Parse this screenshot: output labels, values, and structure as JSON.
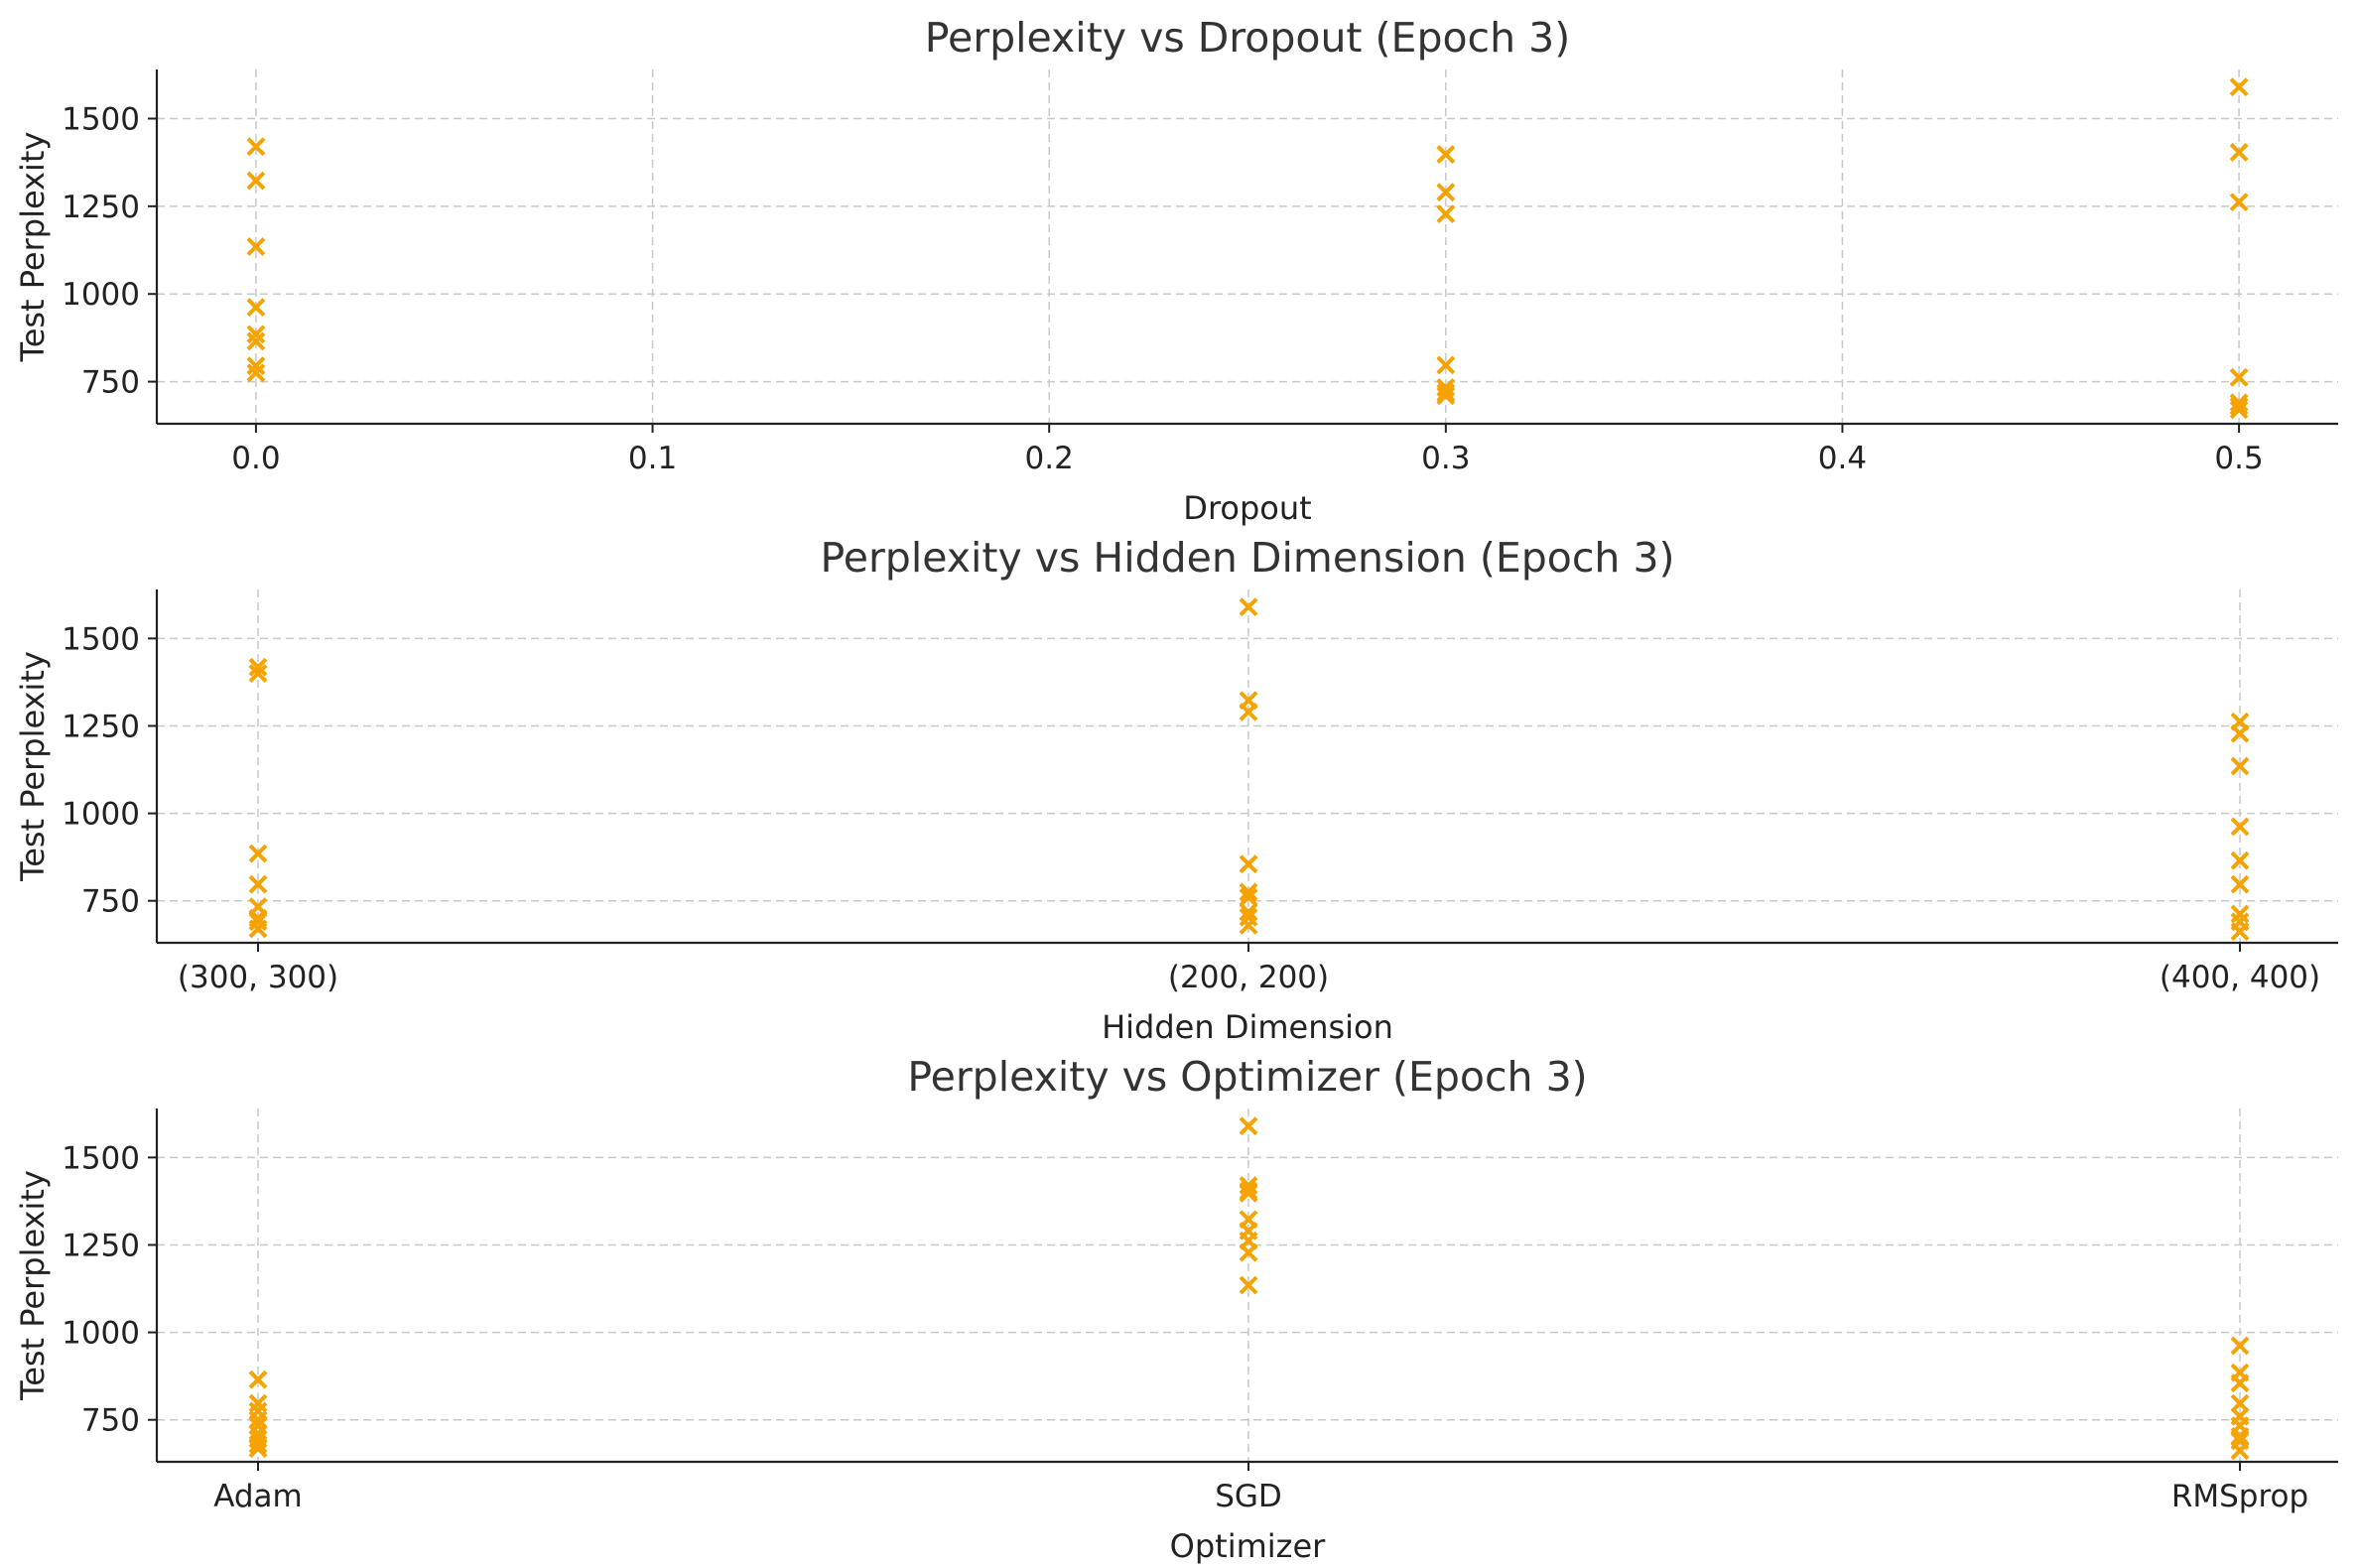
{
  "marker_color": "#f5a300",
  "marker_symbol": "x-marker",
  "chart_data": [
    {
      "type": "scatter",
      "title": "Perplexity vs Dropout (Epoch 3)",
      "xlabel": "Dropout",
      "ylabel": "Test Perplexity",
      "x_axis": "numeric",
      "xlim": [
        -0.025,
        0.525
      ],
      "ylim": [
        630,
        1640
      ],
      "xticks": [
        0.0,
        0.1,
        0.2,
        0.3,
        0.4,
        0.5
      ],
      "xtick_labels": [
        "0.0",
        "0.1",
        "0.2",
        "0.3",
        "0.4",
        "0.5"
      ],
      "yticks": [
        750,
        1000,
        1250,
        1500
      ],
      "ytick_labels": [
        "750",
        "1000",
        "1250",
        "1500"
      ],
      "grid": true,
      "points": [
        {
          "x": 0.0,
          "y": 1420
        },
        {
          "x": 0.0,
          "y": 1323
        },
        {
          "x": 0.0,
          "y": 1135
        },
        {
          "x": 0.0,
          "y": 962
        },
        {
          "x": 0.0,
          "y": 885
        },
        {
          "x": 0.0,
          "y": 865
        },
        {
          "x": 0.0,
          "y": 795
        },
        {
          "x": 0.0,
          "y": 775
        },
        {
          "x": 0.3,
          "y": 1398
        },
        {
          "x": 0.3,
          "y": 1290
        },
        {
          "x": 0.3,
          "y": 1228
        },
        {
          "x": 0.3,
          "y": 797
        },
        {
          "x": 0.3,
          "y": 733
        },
        {
          "x": 0.3,
          "y": 718
        },
        {
          "x": 0.3,
          "y": 710
        },
        {
          "x": 0.5,
          "y": 1590
        },
        {
          "x": 0.5,
          "y": 1404
        },
        {
          "x": 0.5,
          "y": 1262
        },
        {
          "x": 0.5,
          "y": 762
        },
        {
          "x": 0.5,
          "y": 690
        },
        {
          "x": 0.5,
          "y": 680
        },
        {
          "x": 0.5,
          "y": 670
        }
      ]
    },
    {
      "type": "scatter",
      "title": "Perplexity vs Hidden Dimension (Epoch 3)",
      "xlabel": "Hidden Dimension",
      "ylabel": "Test Perplexity",
      "x_axis": "categorical",
      "categories": [
        "(300, 300)",
        "(200, 200)",
        "(400, 400)"
      ],
      "ylim": [
        630,
        1640
      ],
      "yticks": [
        750,
        1000,
        1250,
        1500
      ],
      "ytick_labels": [
        "750",
        "1000",
        "1250",
        "1500"
      ],
      "grid": true,
      "points": [
        {
          "x": "(300, 300)",
          "y": 1418
        },
        {
          "x": "(300, 300)",
          "y": 1400
        },
        {
          "x": "(300, 300)",
          "y": 885
        },
        {
          "x": "(300, 300)",
          "y": 797
        },
        {
          "x": "(300, 300)",
          "y": 733
        },
        {
          "x": "(300, 300)",
          "y": 700
        },
        {
          "x": "(300, 300)",
          "y": 690
        },
        {
          "x": "(300, 300)",
          "y": 670
        },
        {
          "x": "(200, 200)",
          "y": 1590
        },
        {
          "x": "(200, 200)",
          "y": 1323
        },
        {
          "x": "(200, 200)",
          "y": 1290
        },
        {
          "x": "(200, 200)",
          "y": 855
        },
        {
          "x": "(200, 200)",
          "y": 775
        },
        {
          "x": "(200, 200)",
          "y": 760
        },
        {
          "x": "(200, 200)",
          "y": 718
        },
        {
          "x": "(200, 200)",
          "y": 703
        },
        {
          "x": "(200, 200)",
          "y": 680
        },
        {
          "x": "(400, 400)",
          "y": 1262
        },
        {
          "x": "(400, 400)",
          "y": 1228
        },
        {
          "x": "(400, 400)",
          "y": 1135
        },
        {
          "x": "(400, 400)",
          "y": 962
        },
        {
          "x": "(400, 400)",
          "y": 865
        },
        {
          "x": "(400, 400)",
          "y": 797
        },
        {
          "x": "(400, 400)",
          "y": 712
        },
        {
          "x": "(400, 400)",
          "y": 690
        },
        {
          "x": "(400, 400)",
          "y": 662
        }
      ]
    },
    {
      "type": "scatter",
      "title": "Perplexity vs Optimizer (Epoch 3)",
      "xlabel": "Optimizer",
      "ylabel": "Test Perplexity",
      "x_axis": "categorical",
      "categories": [
        "Adam",
        "SGD",
        "RMSprop"
      ],
      "ylim": [
        630,
        1640
      ],
      "yticks": [
        750,
        1000,
        1250,
        1500
      ],
      "ytick_labels": [
        "750",
        "1000",
        "1250",
        "1500"
      ],
      "grid": true,
      "points": [
        {
          "x": "Adam",
          "y": 865
        },
        {
          "x": "Adam",
          "y": 797
        },
        {
          "x": "Adam",
          "y": 775
        },
        {
          "x": "Adam",
          "y": 750
        },
        {
          "x": "Adam",
          "y": 733
        },
        {
          "x": "Adam",
          "y": 710
        },
        {
          "x": "Adam",
          "y": 695
        },
        {
          "x": "Adam",
          "y": 680
        },
        {
          "x": "Adam",
          "y": 668
        },
        {
          "x": "SGD",
          "y": 1590
        },
        {
          "x": "SGD",
          "y": 1420
        },
        {
          "x": "SGD",
          "y": 1404
        },
        {
          "x": "SGD",
          "y": 1398
        },
        {
          "x": "SGD",
          "y": 1323
        },
        {
          "x": "SGD",
          "y": 1290
        },
        {
          "x": "SGD",
          "y": 1262
        },
        {
          "x": "SGD",
          "y": 1228
        },
        {
          "x": "SGD",
          "y": 1135
        },
        {
          "x": "RMSprop",
          "y": 962
        },
        {
          "x": "RMSprop",
          "y": 885
        },
        {
          "x": "RMSprop",
          "y": 855
        },
        {
          "x": "RMSprop",
          "y": 797
        },
        {
          "x": "RMSprop",
          "y": 760
        },
        {
          "x": "RMSprop",
          "y": 733
        },
        {
          "x": "RMSprop",
          "y": 703
        },
        {
          "x": "RMSprop",
          "y": 690
        },
        {
          "x": "RMSprop",
          "y": 662
        }
      ]
    }
  ]
}
